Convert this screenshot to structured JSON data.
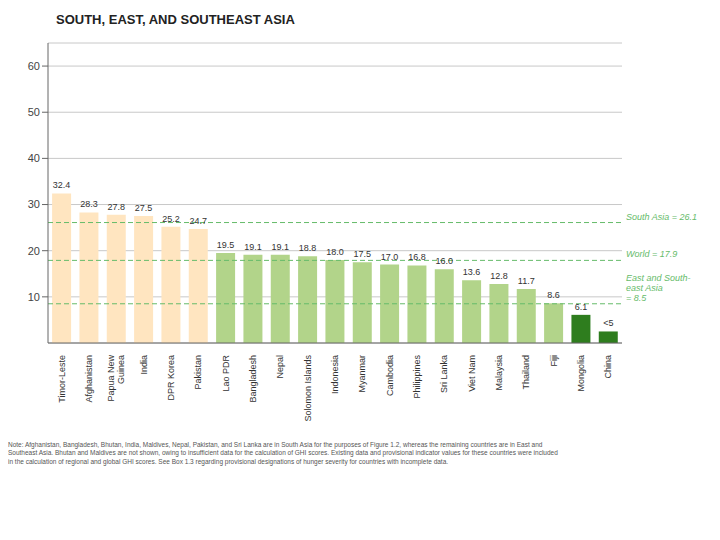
{
  "chart_data": {
    "type": "bar",
    "title": "SOUTH, EAST, AND SOUTHEAST ASIA",
    "categories": [
      "Timor-Leste",
      "Afghanistan",
      "Papua New\nGuinea",
      "India",
      "DPR Korea",
      "Pakistan",
      "Lao PDR",
      "Bangladesh",
      "Nepal",
      "Solomon Islands",
      "Indonesia",
      "Myanmar",
      "Cambodia",
      "Philippines",
      "Sri Lanka",
      "Viet Nam",
      "Malaysia",
      "Thailand",
      "Fiji",
      "Mongolia",
      "China"
    ],
    "values": [
      32.4,
      28.3,
      27.8,
      27.5,
      25.2,
      24.7,
      19.5,
      19.1,
      19.1,
      18.8,
      18.0,
      17.5,
      17.0,
      16.8,
      16.0,
      13.6,
      12.8,
      11.7,
      8.6,
      6.1,
      2.5
    ],
    "value_labels": [
      "32.4",
      "28.3",
      "27.8",
      "27.5",
      "25.2",
      "24.7",
      "19.5",
      "19.1",
      "19.1",
      "18.8",
      "18.0",
      "17.5",
      "17.0",
      "16.8",
      "16.0",
      "13.6",
      "12.8",
      "11.7",
      "8.6",
      "6.1",
      "<5"
    ],
    "data_labels": true,
    "colors": [
      "#FFE5C0",
      "#FFE5C0",
      "#FFE5C0",
      "#FFE5C0",
      "#FFE5C0",
      "#FFE5C0",
      "#B2D48A",
      "#B2D48A",
      "#B2D48A",
      "#B2D48A",
      "#B2D48A",
      "#B2D48A",
      "#B2D48A",
      "#B2D48A",
      "#B2D48A",
      "#B2D48A",
      "#B2D48A",
      "#B2D48A",
      "#B2D48A",
      "#2E7D1E",
      "#2E7D1E"
    ],
    "reference_lines": [
      {
        "value": 26.1,
        "label": "South Asia = 26.1",
        "color": "#66BB6A"
      },
      {
        "value": 17.9,
        "label": "World = 17.9",
        "color": "#66BB6A"
      },
      {
        "value": 8.5,
        "label": "East and South-\neast Asia\n= 8.5",
        "color": "#66BB6A"
      }
    ],
    "note": "Note: Afghanistan, Bangladesh, Bhutan, India, Maldives, Nepal, Pakistan, and Sri Lanka are in South Asia for the purposes of Figure 1.2, whereas the remaining countries are in East and\nSoutheast Asia. Bhutan and Maldives are not shown, owing to insufficient data for the calculation of GHI scores. Existing data and provisional indicator values for these countries were included\nin the calculation of regional and global GHI scores. See Box 1.3 regarding provisional designations of hunger severity for countries with incomplete data.",
    "ylim": [
      0,
      65
    ],
    "yticks": [
      10,
      20,
      30,
      40,
      50,
      60
    ],
    "grid": true
  }
}
